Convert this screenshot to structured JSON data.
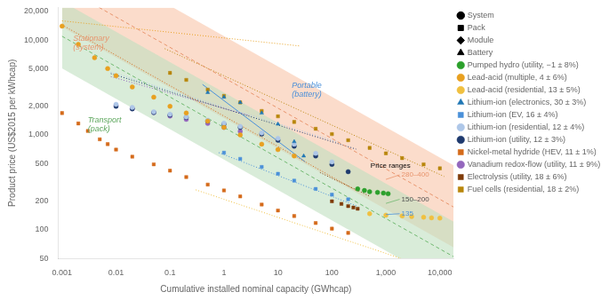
{
  "chart_data": {
    "type": "scatter",
    "xlabel": "Cumulative installed nominal capacity (GWhcap)",
    "ylabel": "Product price (US$2015 per kWhcap)",
    "log": true,
    "xlim": [
      0.00085,
      18000
    ],
    "ylim": [
      50,
      22000
    ],
    "xticks": [
      0.001,
      0.01,
      0.1,
      1,
      10,
      100,
      {
        "value": 1000,
        "label": "1,000"
      },
      {
        "value": 10000,
        "label": "10,000"
      }
    ],
    "yticks": [
      50,
      100,
      200,
      500,
      {
        "value": 1000,
        "label": "1,000"
      },
      {
        "value": 2000,
        "label": "2,000"
      },
      {
        "value": 5000,
        "label": "5,000"
      },
      {
        "value": 10000,
        "label": "10,000"
      },
      {
        "value": 20000,
        "label": "20,000"
      }
    ],
    "grid": false,
    "legend": "right",
    "marker_legend": [
      {
        "name": "System",
        "marker": "circle",
        "color": "black"
      },
      {
        "name": "Pack",
        "marker": "square",
        "color": "black"
      },
      {
        "name": "Module",
        "marker": "diamond",
        "color": "black"
      },
      {
        "name": "Battery",
        "marker": "triangle",
        "color": "black"
      }
    ],
    "series": [
      {
        "name": "Pumped hydro (utility, −1 ± 8%)",
        "color": "#2ca02c",
        "marker": "circle",
        "x": [
          300,
          400,
          500,
          700,
          900,
          1100
        ],
        "y": [
          270,
          260,
          252,
          248,
          244,
          240
        ]
      },
      {
        "name": "Lead-acid (multiple, 4 ± 6%)",
        "color": "#e8a020",
        "marker": "circle",
        "x": [
          0.001,
          0.002,
          0.004,
          0.007,
          0.01,
          0.02,
          0.05,
          0.1,
          0.2,
          0.5,
          1.0,
          2.0,
          5.0,
          10.0,
          20.0
        ],
        "y": [
          14000,
          9000,
          6500,
          5000,
          4200,
          3200,
          2500,
          2000,
          1700,
          1400,
          1200,
          1000,
          800,
          700,
          600
        ]
      },
      {
        "name": "Lead-acid (residential, 13 ± 5%)",
        "color": "#f0c040",
        "marker": "circle",
        "x": [
          500,
          1000,
          2000,
          3000,
          5000,
          7000,
          10000
        ],
        "y": [
          148,
          143,
          140,
          138,
          136,
          134,
          133
        ]
      },
      {
        "name": "Lithium-ion (electronics, 30 ± 3%)",
        "color": "#1f77b4",
        "marker": "triangle",
        "x": [
          0.5,
          1.0,
          2.0,
          5.0,
          10.0,
          20.0,
          30.0
        ],
        "y": [
          2800,
          2500,
          2200,
          1700,
          1300,
          850,
          600
        ]
      },
      {
        "name": "Lithium-ion (EV, 16 ± 4%)",
        "color": "#4a90d9",
        "marker": "square",
        "x": [
          1.0,
          2.0,
          5.0,
          10.0,
          20.0,
          50.0,
          100.0,
          200.0
        ],
        "y": [
          650,
          560,
          460,
          390,
          330,
          270,
          235,
          210
        ]
      },
      {
        "name": "Lithium-ion (residential, 12 ± 4%)",
        "color": "#aec7e8",
        "marker": "circle",
        "x": [
          0.01,
          0.02,
          0.05,
          0.1,
          0.2,
          0.5,
          1.0,
          2.0,
          5.0,
          10.0,
          20.0,
          50.0,
          100.0
        ],
        "y": [
          2100,
          1950,
          1750,
          1650,
          1550,
          1430,
          1330,
          1230,
          1050,
          920,
          800,
          640,
          520
        ]
      },
      {
        "name": "Lithium-ion (utility, 12 ± 3%)",
        "color": "#1f3a6e",
        "marker": "circle",
        "x": [
          0.01,
          0.02,
          0.05,
          0.1,
          0.2,
          0.5,
          1.0,
          2.0,
          5.0,
          10.0,
          20.0,
          50.0,
          100.0,
          200.0
        ],
        "y": [
          2000,
          1880,
          1720,
          1620,
          1530,
          1400,
          1300,
          1200,
          1020,
          880,
          760,
          600,
          490,
          410
        ]
      },
      {
        "name": "Nickel-metal hydride (HEV, 11 ± 1%)",
        "color": "#d46a1a",
        "marker": "square",
        "x": [
          0.001,
          0.002,
          0.003,
          0.005,
          0.007,
          0.01,
          0.02,
          0.05,
          0.1,
          0.2,
          0.5,
          1.0,
          2.0,
          5.0,
          10.0,
          20.0,
          50.0,
          100.0,
          200.0
        ],
        "y": [
          1700,
          1320,
          1100,
          900,
          800,
          700,
          590,
          490,
          420,
          360,
          300,
          260,
          225,
          185,
          160,
          140,
          118,
          103,
          93
        ]
      },
      {
        "name": "Vanadium redox-flow (utility, 11 ± 9%)",
        "color": "#9467bd",
        "marker": "circle",
        "x": [
          0.01,
          0.02,
          0.05,
          0.1,
          0.2,
          0.5,
          1.0,
          2.0
        ],
        "y": [
          2050,
          1900,
          1720,
          1580,
          1460,
          1320,
          1200,
          1090
        ]
      },
      {
        "name": "Electrolysis (utility, 18 ± 6%)",
        "color": "#7f3b08",
        "marker": "square",
        "x": [
          100,
          150,
          200,
          250,
          300
        ],
        "y": [
          200,
          188,
          178,
          172,
          167
        ]
      },
      {
        "name": "Fuel cells (residential, 18 ± 2%)",
        "color": "#b8860b",
        "marker": "square",
        "x": [
          0.1,
          0.2,
          0.5,
          1.0,
          2.0,
          5.0,
          10.0,
          20.0,
          50.0,
          100.0,
          200.0,
          500.0,
          1000.0,
          2000.0,
          5000.0,
          10000.0
        ],
        "y": [
          4500,
          3800,
          3000,
          2580,
          2200,
          1790,
          1570,
          1370,
          1160,
          1020,
          880,
          730,
          640,
          570,
          490,
          445
        ]
      }
    ],
    "lines": [
      {
        "color": "#e8956e",
        "line_style": "dashed",
        "x": [
          0.004857,
          18000
        ],
        "y": [
          22000,
          173.9
        ]
      },
      {
        "color": "#70b870",
        "line_style": "dashed",
        "x": [
          0.001,
          18000
        ],
        "y": [
          10944,
          52.17
        ]
      },
      {
        "color": "#d46a1a",
        "line_style": "dotted",
        "x": [
          0.001,
          300
        ],
        "y": [
          14410,
          254.7
        ]
      },
      {
        "color": "#e8a020",
        "line_style": "dotted",
        "x": [
          0.001,
          25
        ],
        "y": [
          15893,
          8656
        ]
      },
      {
        "color": "#f0c040",
        "line_style": "dotted",
        "x": [
          0.3,
          1906
        ],
        "y": [
          264.0,
          50
        ]
      },
      {
        "color": "#4a90d9",
        "line_style": "dotted",
        "x": [
          0.8,
          300
        ],
        "y": [
          651.2,
          176.8
        ]
      },
      {
        "color": "#aec7e8",
        "line_style": "dotted",
        "x": [
          0.008,
          130
        ],
        "y": [
          4586,
          840.5
        ]
      },
      {
        "color": "#1f3a6e",
        "line_style": "dotted",
        "x": [
          0.008,
          280
        ],
        "y": [
          4423,
          708.8
        ]
      },
      {
        "color": "#9467bd",
        "line_style": "dotted",
        "x": [
          0.008,
          3
        ],
        "y": [
          4114,
          1594
        ]
      },
      {
        "color": "#b8860b",
        "line_style": "dotted",
        "x": [
          0.08,
          12000
        ],
        "y": [
          8099,
          365.3
        ]
      },
      {
        "color": "#7f3b08",
        "line_style": "dotted",
        "x": [
          60,
          500
        ],
        "y": [
          401.8,
          226.6
        ]
      },
      {
        "color": "#4a90d9",
        "line_style": "solid",
        "x": [
          0.4,
          32
        ],
        "y": [
          3400,
          520
        ]
      }
    ],
    "bands": [
      {
        "color": "#f9c4a8",
        "x": [
          0.001,
          0.1146,
          18000
        ],
        "low": [
          13680,
          3000,
          65.21
        ],
        "high": [
          22000,
          22000,
          478.2
        ]
      },
      {
        "color": "#c0dfc0",
        "x": [
          0.001,
          0.001593,
          1796,
          18000
        ],
        "low": [
          5016,
          4321,
          50,
          50
        ],
        "high": [
          22000,
          22000,
          254.5,
          121.7
        ]
      }
    ],
    "annotations": [
      {
        "text": "Stationary\n(system)",
        "x": 0.0016,
        "y": 7500,
        "color": "#e8956e"
      },
      {
        "text": "Transport\n(pack)",
        "x": 0.003,
        "y": 1050,
        "color": "#60a860"
      },
      {
        "text": "Portable\n(battery)",
        "x": 18,
        "y": 2400,
        "color": "#4a90d9"
      },
      {
        "text": "Price ranges",
        "x": 520,
        "y": 430,
        "color": "black"
      },
      {
        "text": "280–400",
        "x": 1800,
        "y": 380,
        "color": "#e8956e",
        "point": [
          1000,
          340
        ],
        "line_color": "#e8956e"
      },
      {
        "text": "150–200",
        "x": 1800,
        "y": 210,
        "color": "#505050",
        "point": [
          1000,
          190
        ],
        "line_color": "#70b870"
      },
      {
        "text": "135",
        "x": 1800,
        "y": 148,
        "color": "#4a90d9",
        "point": [
          1000,
          145
        ],
        "line_color": "#4a90d9"
      }
    ]
  }
}
